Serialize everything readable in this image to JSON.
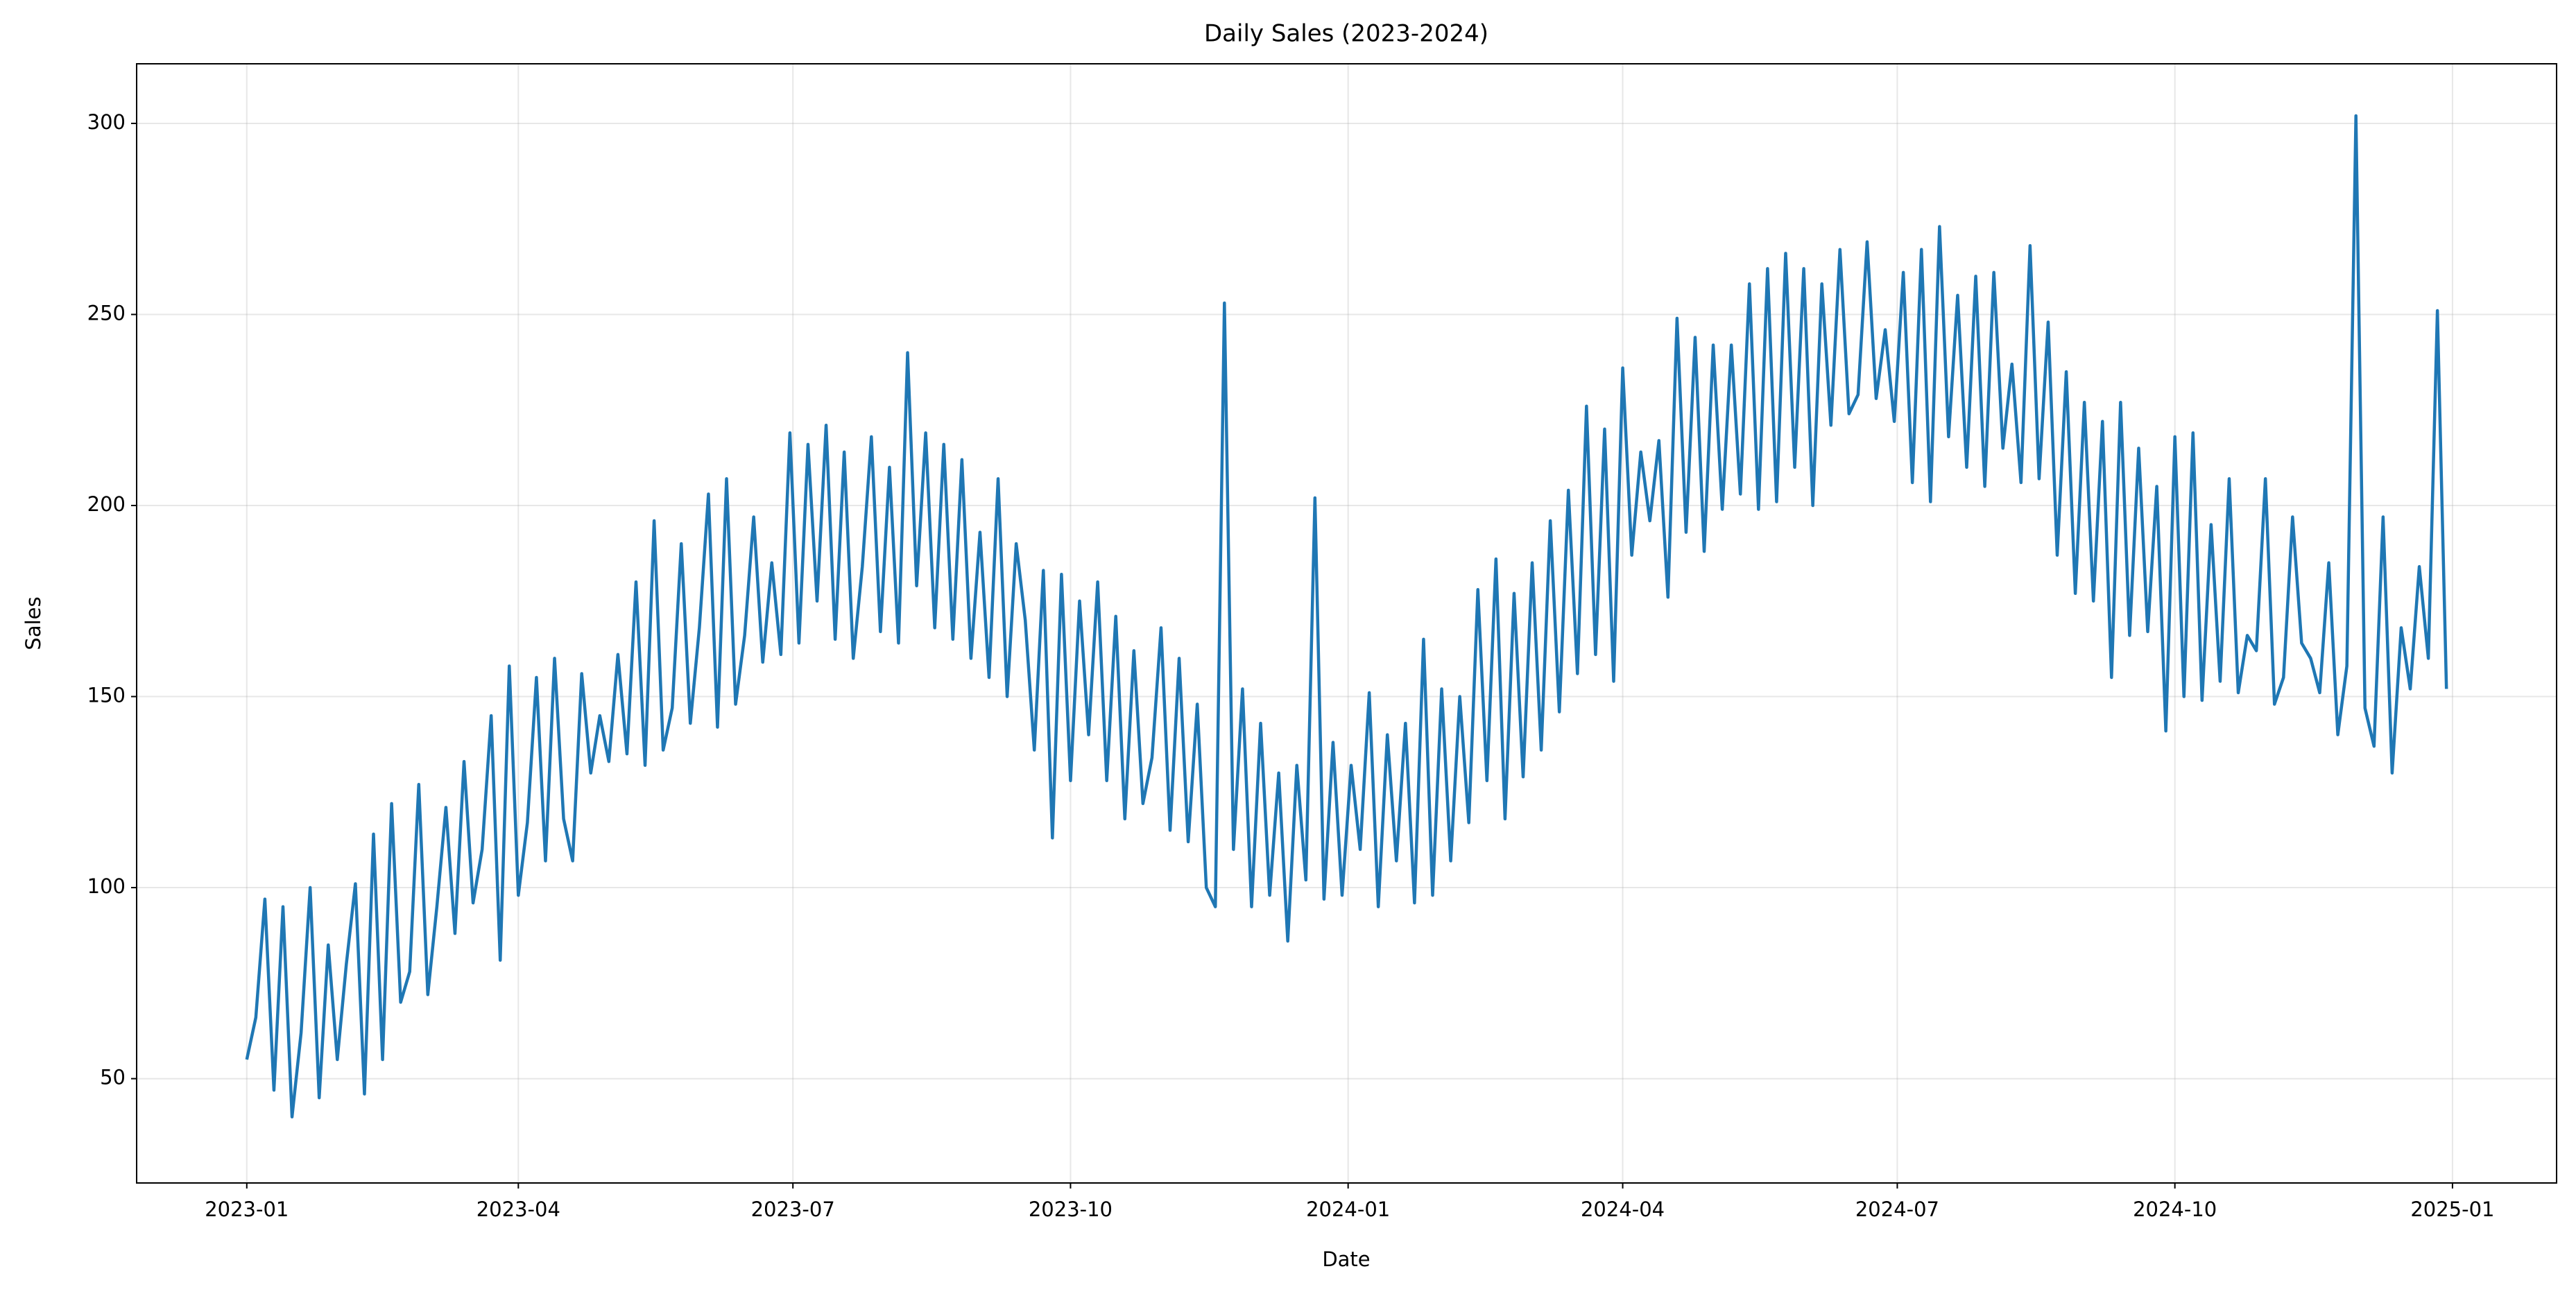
{
  "chart_data": {
    "type": "line",
    "title": "Daily Sales (2023-2024)",
    "x_label": "Date",
    "y_label": "Sales",
    "color": "#1f77b4",
    "grid": true,
    "xlim": [
      -36.5,
      765.5
    ],
    "ylim": [
      22.7,
      315.6
    ],
    "xticks": [
      {
        "value": 0,
        "label": "2023-01"
      },
      {
        "value": 90,
        "label": "2023-04"
      },
      {
        "value": 181,
        "label": "2023-07"
      },
      {
        "value": 273,
        "label": "2023-10"
      },
      {
        "value": 365,
        "label": "2024-01"
      },
      {
        "value": 456,
        "label": "2024-04"
      },
      {
        "value": 547,
        "label": "2024-07"
      },
      {
        "value": 639,
        "label": "2024-10"
      },
      {
        "value": 731,
        "label": "2025-01"
      }
    ],
    "yticks": [
      50,
      100,
      150,
      200,
      250,
      300
    ],
    "x": [
      0,
      3,
      6,
      9,
      12,
      15,
      18,
      21,
      24,
      27,
      30,
      33,
      36,
      39,
      42,
      45,
      48,
      51,
      54,
      57,
      60,
      63,
      66,
      69,
      72,
      75,
      78,
      81,
      84,
      87,
      90,
      93,
      96,
      99,
      102,
      105,
      108,
      111,
      114,
      117,
      120,
      123,
      126,
      129,
      132,
      135,
      138,
      141,
      144,
      147,
      150,
      153,
      156,
      159,
      162,
      165,
      168,
      171,
      174,
      177,
      180,
      183,
      186,
      189,
      192,
      195,
      198,
      201,
      204,
      207,
      210,
      213,
      216,
      219,
      222,
      225,
      228,
      231,
      234,
      237,
      240,
      243,
      246,
      249,
      252,
      255,
      258,
      261,
      264,
      267,
      270,
      273,
      276,
      279,
      282,
      285,
      288,
      291,
      294,
      297,
      300,
      303,
      306,
      309,
      312,
      315,
      318,
      321,
      324,
      327,
      330,
      333,
      336,
      339,
      342,
      345,
      348,
      351,
      354,
      357,
      360,
      363,
      366,
      369,
      372,
      375,
      378,
      381,
      384,
      387,
      390,
      393,
      396,
      399,
      402,
      405,
      408,
      411,
      414,
      417,
      420,
      423,
      426,
      429,
      432,
      435,
      438,
      441,
      444,
      447,
      450,
      453,
      456,
      459,
      462,
      465,
      468,
      471,
      474,
      477,
      480,
      483,
      486,
      489,
      492,
      495,
      498,
      501,
      504,
      507,
      510,
      513,
      516,
      519,
      522,
      525,
      528,
      531,
      534,
      537,
      540,
      543,
      546,
      549,
      552,
      555,
      558,
      561,
      564,
      567,
      570,
      573,
      576,
      579,
      582,
      585,
      588,
      591,
      594,
      597,
      600,
      603,
      606,
      609,
      612,
      615,
      618,
      621,
      624,
      627,
      630,
      633,
      636,
      639,
      642,
      645,
      648,
      651,
      654,
      657,
      660,
      663,
      666,
      669,
      672,
      675,
      678,
      681,
      684,
      687,
      690,
      693,
      696,
      699,
      702,
      705,
      708,
      711,
      714,
      717,
      720,
      723,
      726,
      729
    ],
    "values": [
      55,
      66,
      97,
      47,
      95,
      40,
      62,
      100,
      45,
      85,
      55,
      80,
      101,
      46,
      114,
      55,
      122,
      70,
      78,
      127,
      72,
      95,
      121,
      88,
      133,
      96,
      110,
      145,
      81,
      158,
      98,
      117,
      155,
      107,
      160,
      118,
      107,
      156,
      130,
      145,
      133,
      161,
      135,
      180,
      132,
      196,
      136,
      147,
      190,
      143,
      168,
      203,
      142,
      207,
      148,
      166,
      197,
      159,
      185,
      161,
      219,
      164,
      216,
      175,
      221,
      165,
      214,
      160,
      184,
      218,
      167,
      210,
      164,
      240,
      179,
      219,
      168,
      216,
      165,
      212,
      160,
      193,
      155,
      207,
      150,
      190,
      170,
      136,
      183,
      113,
      182,
      128,
      175,
      140,
      180,
      128,
      171,
      118,
      162,
      122,
      134,
      168,
      115,
      160,
      112,
      148,
      100,
      95,
      253,
      110,
      152,
      95,
      143,
      98,
      130,
      86,
      132,
      102,
      202,
      97,
      138,
      98,
      132,
      110,
      151,
      95,
      140,
      107,
      143,
      96,
      165,
      98,
      152,
      107,
      150,
      117,
      178,
      128,
      186,
      118,
      177,
      129,
      185,
      136,
      196,
      146,
      204,
      156,
      226,
      161,
      220,
      154,
      236,
      187,
      214,
      196,
      217,
      176,
      249,
      193,
      244,
      188,
      242,
      199,
      242,
      203,
      258,
      199,
      262,
      201,
      266,
      210,
      262,
      200,
      258,
      221,
      267,
      224,
      229,
      269,
      228,
      246,
      222,
      261,
      206,
      267,
      201,
      273,
      218,
      255,
      210,
      260,
      205,
      261,
      215,
      237,
      206,
      268,
      207,
      248,
      187,
      235,
      177,
      227,
      175,
      222,
      155,
      227,
      166,
      215,
      167,
      205,
      141,
      218,
      150,
      219,
      149,
      195,
      154,
      207,
      151,
      166,
      162,
      207,
      148,
      155,
      197,
      164,
      160,
      151,
      185,
      140,
      158,
      302,
      147,
      137,
      197,
      130,
      168,
      152,
      184,
      160,
      251,
      152
    ]
  }
}
